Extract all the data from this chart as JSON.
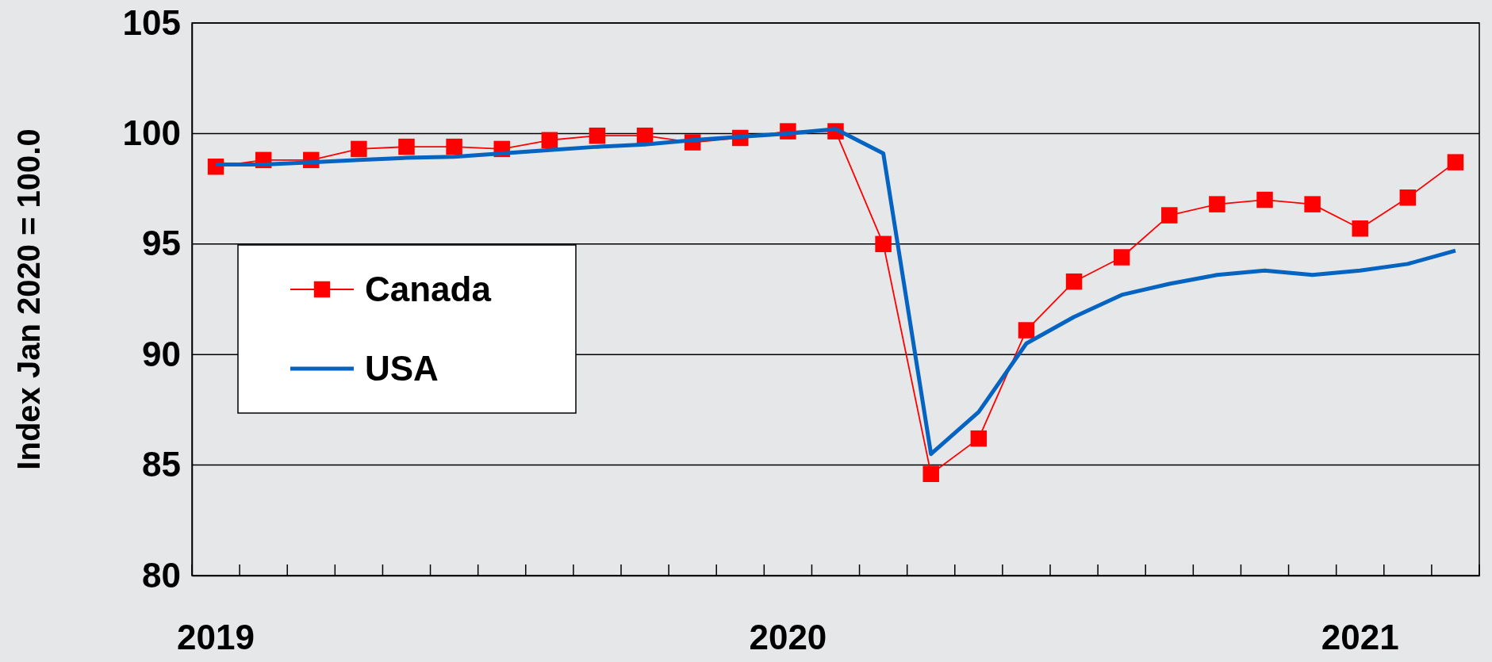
{
  "chart_data": {
    "type": "line",
    "ylabel": "Index Jan 2020 = 100.0",
    "categories": [
      "2019",
      null,
      null,
      null,
      null,
      null,
      null,
      null,
      null,
      null,
      null,
      null,
      "2020",
      null,
      null,
      null,
      null,
      null,
      null,
      null,
      null,
      null,
      null,
      null,
      "2021",
      null,
      null
    ],
    "series": [
      {
        "name": "Canada",
        "color": "#ff0000",
        "marker": "square",
        "values": [
          98.5,
          98.8,
          98.8,
          99.3,
          99.4,
          99.4,
          99.3,
          99.7,
          99.9,
          99.9,
          99.6,
          99.8,
          100.1,
          100.1,
          95.0,
          84.6,
          86.2,
          91.1,
          93.3,
          94.4,
          96.3,
          96.8,
          97.0,
          96.8,
          95.7,
          97.1,
          98.7
        ]
      },
      {
        "name": "USA",
        "color": "#0563c1",
        "marker": "none",
        "values": [
          98.6,
          98.6,
          98.7,
          98.8,
          98.9,
          98.95,
          99.1,
          99.25,
          99.4,
          99.5,
          99.7,
          99.85,
          100.0,
          100.2,
          99.1,
          85.5,
          87.4,
          90.5,
          91.7,
          92.7,
          93.2,
          93.6,
          93.8,
          93.6,
          93.8,
          94.1,
          94.7
        ]
      }
    ],
    "ylim": [
      80,
      105
    ],
    "yticks": [
      80,
      85,
      90,
      95,
      100,
      105
    ],
    "grid": "y",
    "legend": "left",
    "line_style": "solid"
  }
}
